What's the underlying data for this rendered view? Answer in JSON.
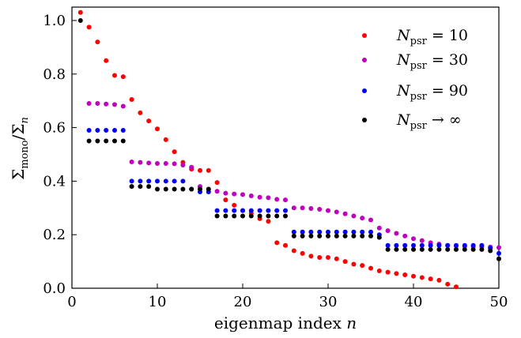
{
  "chart_data": {
    "type": "scatter",
    "xlabel_text": "eigenmap index ",
    "xlabel_var": "n",
    "ylabel_num": "Σ",
    "ylabel_num_sub": "mono",
    "ylabel_sep": "/",
    "ylabel_den": "Σ",
    "ylabel_den_sub": "n",
    "xlim": [
      0,
      50
    ],
    "ylim": [
      0.0,
      1.05
    ],
    "xticks": [
      0,
      10,
      20,
      30,
      40,
      50
    ],
    "xtick_labels": [
      "0",
      "10",
      "20",
      "30",
      "40",
      "50"
    ],
    "yticks": [
      0.0,
      0.2,
      0.4,
      0.6,
      0.8,
      1.0
    ],
    "ytick_labels": [
      "0.0",
      "0.2",
      "0.4",
      "0.6",
      "0.8",
      "1.0"
    ],
    "grid": false,
    "legend_position": "top-right",
    "series": [
      {
        "legend_var": "N",
        "legend_sub": "psr",
        "legend_rel": " = 10",
        "color": "#ff0000",
        "x": [
          1,
          2,
          3,
          4,
          5,
          6,
          7,
          8,
          9,
          10,
          11,
          12,
          13,
          14,
          15,
          16,
          17,
          18,
          19,
          20,
          21,
          22,
          23,
          24,
          25,
          26,
          27,
          28,
          29,
          30,
          31,
          32,
          33,
          34,
          35,
          36,
          37,
          38,
          39,
          40,
          41,
          42,
          43,
          44,
          45
        ],
        "y": [
          1.03,
          0.975,
          0.92,
          0.85,
          0.795,
          0.79,
          0.705,
          0.655,
          0.625,
          0.595,
          0.555,
          0.51,
          0.47,
          0.445,
          0.44,
          0.44,
          0.395,
          0.33,
          0.31,
          0.29,
          0.28,
          0.26,
          0.25,
          0.17,
          0.16,
          0.14,
          0.13,
          0.12,
          0.115,
          0.115,
          0.11,
          0.1,
          0.09,
          0.085,
          0.075,
          0.065,
          0.06,
          0.055,
          0.05,
          0.045,
          0.04,
          0.035,
          0.03,
          0.015,
          0.005
        ]
      },
      {
        "legend_var": "N",
        "legend_sub": "psr",
        "legend_rel": " = 30",
        "color": "#bf00bf",
        "x": [
          2,
          3,
          4,
          5,
          6,
          7,
          8,
          9,
          10,
          11,
          12,
          13,
          14,
          15,
          16,
          17,
          18,
          19,
          20,
          21,
          22,
          23,
          24,
          25,
          26,
          27,
          28,
          29,
          30,
          31,
          32,
          33,
          34,
          35,
          36,
          37,
          38,
          39,
          40,
          41,
          42,
          43,
          44,
          45,
          46,
          47,
          48,
          49,
          50
        ],
        "y": [
          0.69,
          0.69,
          0.688,
          0.686,
          0.68,
          0.472,
          0.47,
          0.468,
          0.466,
          0.466,
          0.465,
          0.46,
          0.452,
          0.38,
          0.37,
          0.362,
          0.355,
          0.352,
          0.35,
          0.345,
          0.34,
          0.338,
          0.332,
          0.33,
          0.3,
          0.3,
          0.298,
          0.295,
          0.29,
          0.285,
          0.278,
          0.27,
          0.262,
          0.255,
          0.225,
          0.215,
          0.205,
          0.195,
          0.185,
          0.178,
          0.17,
          0.165,
          0.16,
          0.158,
          0.157,
          0.156,
          0.155,
          0.154,
          0.152
        ]
      },
      {
        "legend_var": "N",
        "legend_sub": "psr",
        "legend_rel": " = 90",
        "color": "#0000ff",
        "x": [
          2,
          3,
          4,
          5,
          6,
          7,
          8,
          9,
          10,
          11,
          12,
          13,
          14,
          15,
          16,
          17,
          18,
          19,
          20,
          21,
          22,
          23,
          24,
          25,
          26,
          27,
          28,
          29,
          30,
          31,
          32,
          33,
          34,
          35,
          36,
          37,
          38,
          39,
          40,
          41,
          42,
          43,
          44,
          45,
          46,
          47,
          48,
          49,
          50
        ],
        "y": [
          0.59,
          0.59,
          0.59,
          0.59,
          0.59,
          0.4,
          0.4,
          0.4,
          0.4,
          0.4,
          0.4,
          0.4,
          0.37,
          0.36,
          0.36,
          0.29,
          0.29,
          0.29,
          0.29,
          0.29,
          0.29,
          0.29,
          0.29,
          0.29,
          0.21,
          0.21,
          0.21,
          0.21,
          0.21,
          0.21,
          0.21,
          0.21,
          0.21,
          0.21,
          0.2,
          0.16,
          0.16,
          0.16,
          0.16,
          0.16,
          0.16,
          0.16,
          0.16,
          0.16,
          0.16,
          0.16,
          0.16,
          0.15,
          0.13
        ]
      },
      {
        "legend_var": "N",
        "legend_sub": "psr",
        "legend_rel": " → ∞",
        "color": "#000000",
        "x": [
          1,
          2,
          3,
          4,
          5,
          6,
          7,
          8,
          9,
          10,
          11,
          12,
          13,
          14,
          15,
          16,
          17,
          18,
          19,
          20,
          21,
          22,
          23,
          24,
          25,
          26,
          27,
          28,
          29,
          30,
          31,
          32,
          33,
          34,
          35,
          36,
          37,
          38,
          39,
          40,
          41,
          42,
          43,
          44,
          45,
          46,
          47,
          48,
          49,
          50
        ],
        "y": [
          1.0,
          0.55,
          0.55,
          0.55,
          0.55,
          0.55,
          0.38,
          0.38,
          0.38,
          0.37,
          0.37,
          0.37,
          0.37,
          0.37,
          0.37,
          0.37,
          0.27,
          0.27,
          0.27,
          0.27,
          0.27,
          0.27,
          0.27,
          0.27,
          0.27,
          0.195,
          0.195,
          0.195,
          0.195,
          0.195,
          0.195,
          0.195,
          0.195,
          0.195,
          0.195,
          0.19,
          0.145,
          0.145,
          0.145,
          0.145,
          0.145,
          0.145,
          0.145,
          0.145,
          0.145,
          0.145,
          0.145,
          0.145,
          0.14,
          0.11
        ]
      }
    ]
  }
}
